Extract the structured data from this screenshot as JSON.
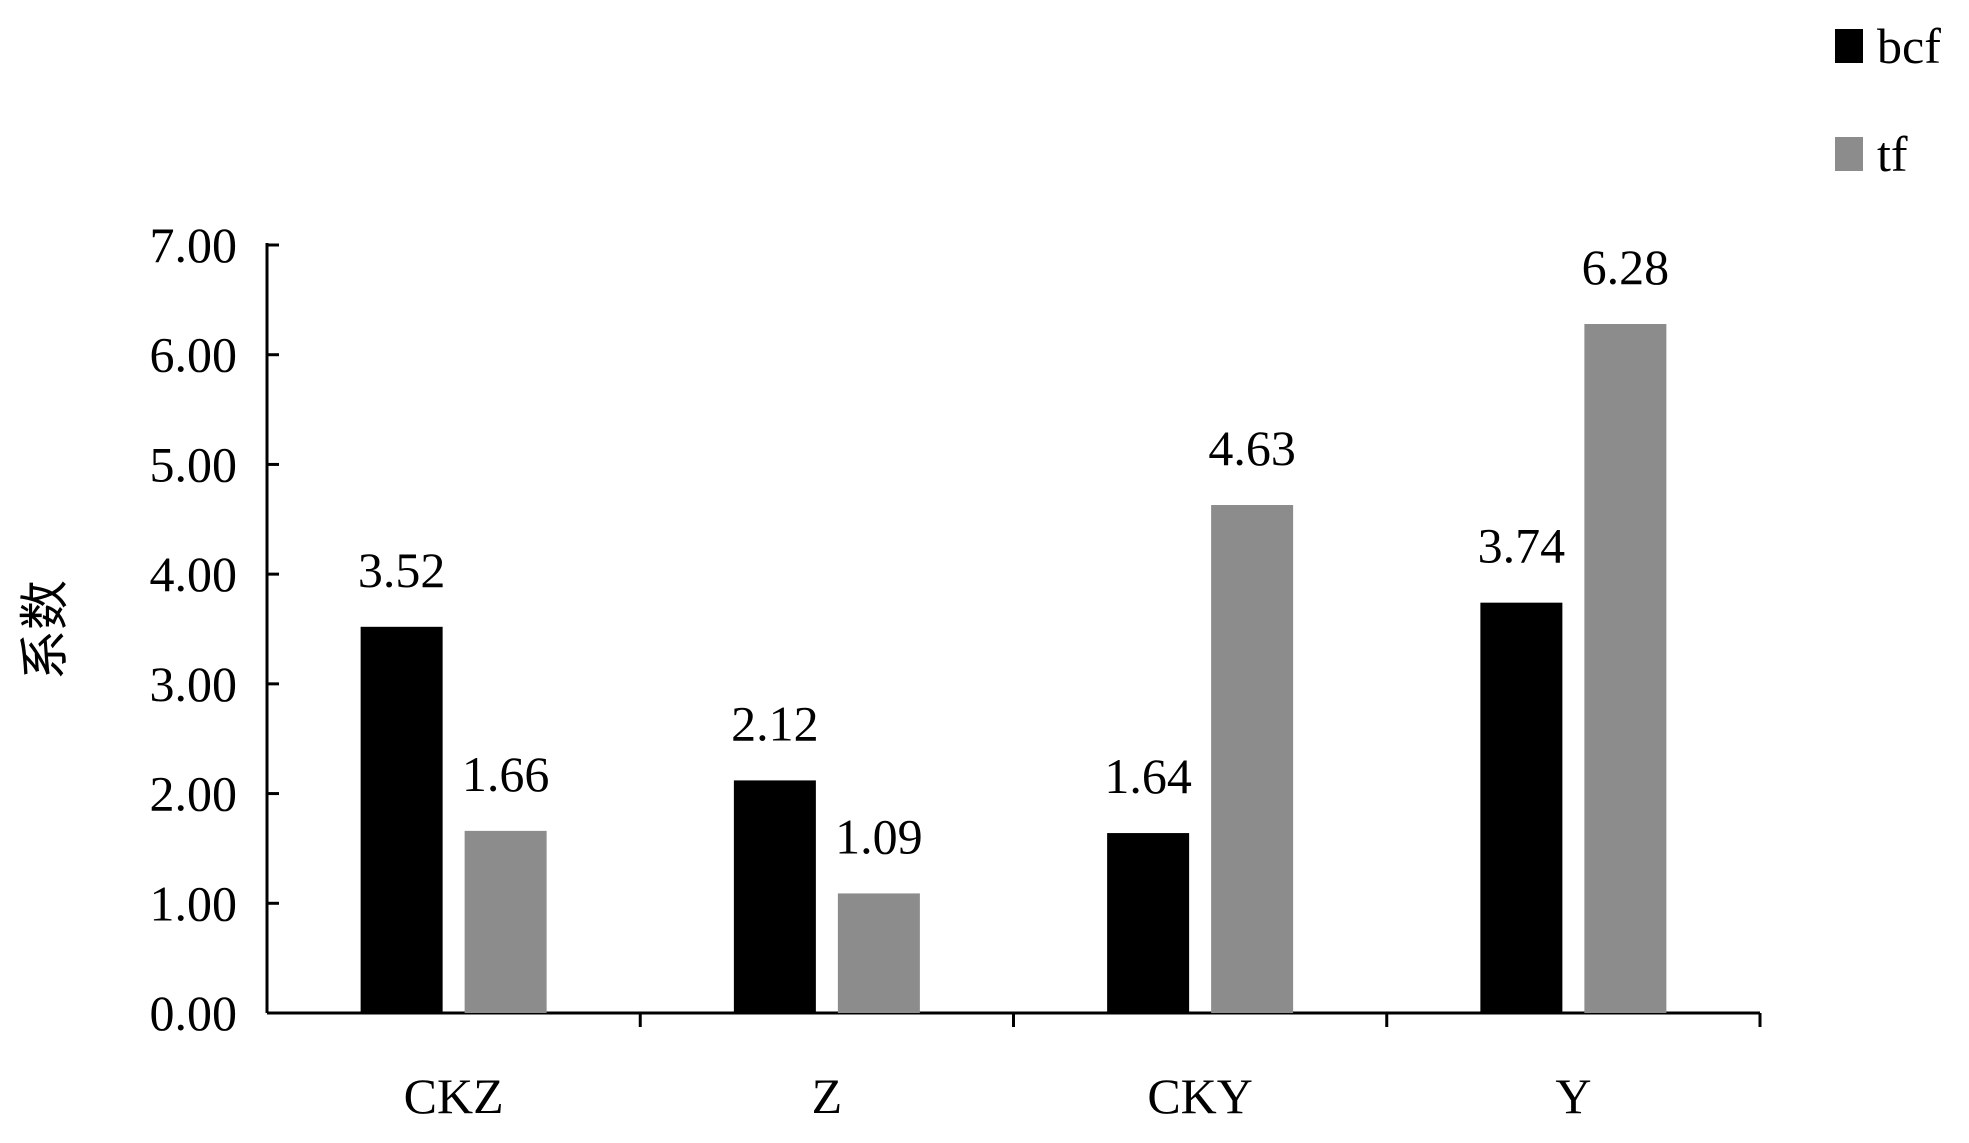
{
  "chart_data": {
    "type": "bar",
    "title": "",
    "xlabel": "",
    "ylabel": "系数",
    "ylim": [
      0,
      7
    ],
    "yticks": [
      "0.00",
      "1.00",
      "2.00",
      "3.00",
      "4.00",
      "5.00",
      "6.00",
      "7.00"
    ],
    "categories": [
      "CKZ",
      "Z",
      "CKY",
      "Y"
    ],
    "series": [
      {
        "name": "bcf",
        "color": "#000000",
        "values": [
          3.52,
          2.12,
          1.64,
          3.74
        ],
        "labels": [
          "3.52",
          "2.12",
          "1.64",
          "3.74"
        ]
      },
      {
        "name": "tf",
        "color": "#8c8c8c",
        "values": [
          1.66,
          1.09,
          4.63,
          6.28
        ],
        "labels": [
          "1.66",
          "1.09",
          "4.63",
          "6.28"
        ]
      }
    ],
    "legend": "top-right",
    "grid": false
  }
}
